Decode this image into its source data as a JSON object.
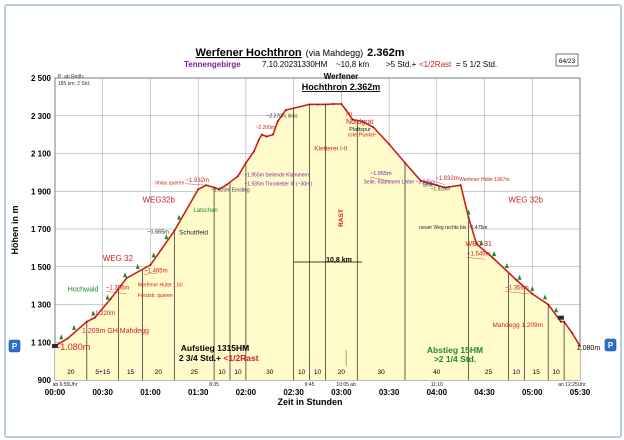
{
  "header": {
    "title_main": "Werfener Hochthron",
    "title_via": "(via Mahdegg)",
    "title_elev": "2.362m",
    "region": "Tennengebirge",
    "date": "7.10.2023",
    "ascent": "1330HM",
    "distance": "~10,8 km",
    "time_text": ">5 Std.+",
    "rest_text": "<1/2Rast",
    "total_text": "= 5 1/2 Std.",
    "page_number": "64/23",
    "corner_note_1": "P: ab Reith:",
    "corner_note_2": "185 km; 2 Std."
  },
  "summit": {
    "line1": "Werfener",
    "line2": "Hochthron 2.362m"
  },
  "nav": {
    "prev_label": "P",
    "next_label": "P"
  },
  "sections": {
    "ascent_title": "Aufstieg 1315HM",
    "ascent_time": "2 3/4 Std.+",
    "ascent_rest": "<1/2Rast",
    "descent_title": "Abstieg 15HM",
    "descent_time": ">2 1/4 Std.",
    "distance_marker": "10,8 km",
    "rast_label": "RAST"
  },
  "segment_minutes": [
    "20",
    "5+15",
    "15",
    "20",
    "25",
    "10",
    "10",
    "30",
    "10",
    "10",
    "20",
    "30",
    "40",
    "25",
    "10",
    "15",
    "10"
  ],
  "small_times": [
    "ab 6:55Uhr",
    "8:35",
    "9:45",
    "10:05 ab",
    "11:10",
    "an 12:25Uhr"
  ],
  "annotations": {
    "start_elev": "~1.080m",
    "end_elev": "1.080m",
    "gh_mahdegg": "1.209m GH Mahdegg",
    "mahdegg_right": "Mahdegg 1.209m",
    "hochwald": "Hochwald",
    "weg32_left": "WEG 32",
    "weg32b_left": "WEG32b",
    "weg32b_right": "WEG 32b",
    "weg31": "WEG 31",
    "schuttfeld": "Schuttfeld",
    "latschen": "Latschen",
    "nordgrat": "Nordgrat",
    "plattspur": "Plattspur",
    "rote_punkte": "rote Punkte",
    "kletterei": "Kletterei I-II",
    "l_ii": "I-II",
    "a_1220": "~1.220m",
    "a_1356l": "~1.356m",
    "a_1465": "~1.465m",
    "a_1665": "~1.665m",
    "a_1932l": "~1.932m",
    "a_1920l": "~1.920m Einstieg",
    "a_1955l": "~1.955m Seilende Klammern",
    "a_1935l": "~1.935m Thronleiter III (~30m)",
    "a_2270": "~2.270m links",
    "a_2200": "~2.200m",
    "a_1955r": "~1.955m",
    "a_1935r": "Seile, Klammern Leiter ~1.935m",
    "a_1920r": "~1.920m",
    "a_1932r": "~1.932m",
    "a_1549": "~1.549m",
    "a_1356r": "~1.356m",
    "werfener_huette": "Werfener Hütte 1967m",
    "werfener_huette_l": "Werfener Hütte 1.50",
    "forststrasse": "Forststr. queren",
    "route_queren": "Imlau queren",
    "neuer_weg": "neuer Weg rechts bis ~1.475m",
    "seile_r": "Seile"
  },
  "chart_data": {
    "type": "area",
    "title": "Werfener Hochthron (via Mahdegg) 2.362m",
    "xlabel": "Zeit in Stunden",
    "ylabel": "Höhen in m",
    "xlim": [
      0,
      330
    ],
    "ylim": [
      900,
      2500
    ],
    "x_unit": "minutes",
    "x_tick_minutes": [
      0,
      30,
      60,
      90,
      120,
      150,
      180,
      210,
      240,
      270,
      300,
      330
    ],
    "x_tick_labels": [
      "00:00",
      "00:30",
      "01:00",
      "01:30",
      "02:00",
      "02:30",
      "03:00",
      "03:30",
      "04:00",
      "04:30",
      "05:00",
      "05:30"
    ],
    "y_ticks": [
      900,
      1100,
      1300,
      1500,
      1700,
      1900,
      2100,
      2300,
      2500
    ],
    "y_tick_labels": [
      "900",
      "1 100",
      "1 300",
      "1 500",
      "1 700",
      "1 900",
      "2 100",
      "2 300",
      "2 500"
    ],
    "grid": true,
    "fill_color": "#fffbc8",
    "line_color": "#cc1f1f",
    "x": [
      0,
      8,
      20,
      25,
      35,
      45,
      60,
      75,
      90,
      95,
      100,
      103,
      108,
      115,
      120,
      125,
      128,
      130,
      133,
      137,
      140,
      145,
      160,
      165,
      170,
      175,
      180,
      183,
      187,
      193,
      200,
      210,
      220,
      230,
      240,
      245,
      255,
      260,
      265,
      275,
      290,
      300,
      310,
      318,
      320,
      325,
      330
    ],
    "y": [
      1080,
      1120,
      1209,
      1230,
      1330,
      1440,
      1510,
      1690,
      1910,
      1932,
      1920,
      1910,
      1935,
      1980,
      2050,
      2110,
      2170,
      2200,
      2190,
      2200,
      2270,
      2330,
      2360,
      2360,
      2360,
      2362,
      2362,
      2330,
      2280,
      2270,
      2240,
      2150,
      2050,
      1955,
      1932,
      1920,
      1932,
      1760,
      1620,
      1549,
      1430,
      1356,
      1300,
      1209,
      1209,
      1150,
      1080
    ],
    "segment_boundaries_min": [
      0,
      20,
      40,
      55,
      75,
      100,
      110,
      120,
      150,
      160,
      170,
      190,
      220,
      260,
      285,
      295,
      310,
      320,
      330
    ]
  }
}
